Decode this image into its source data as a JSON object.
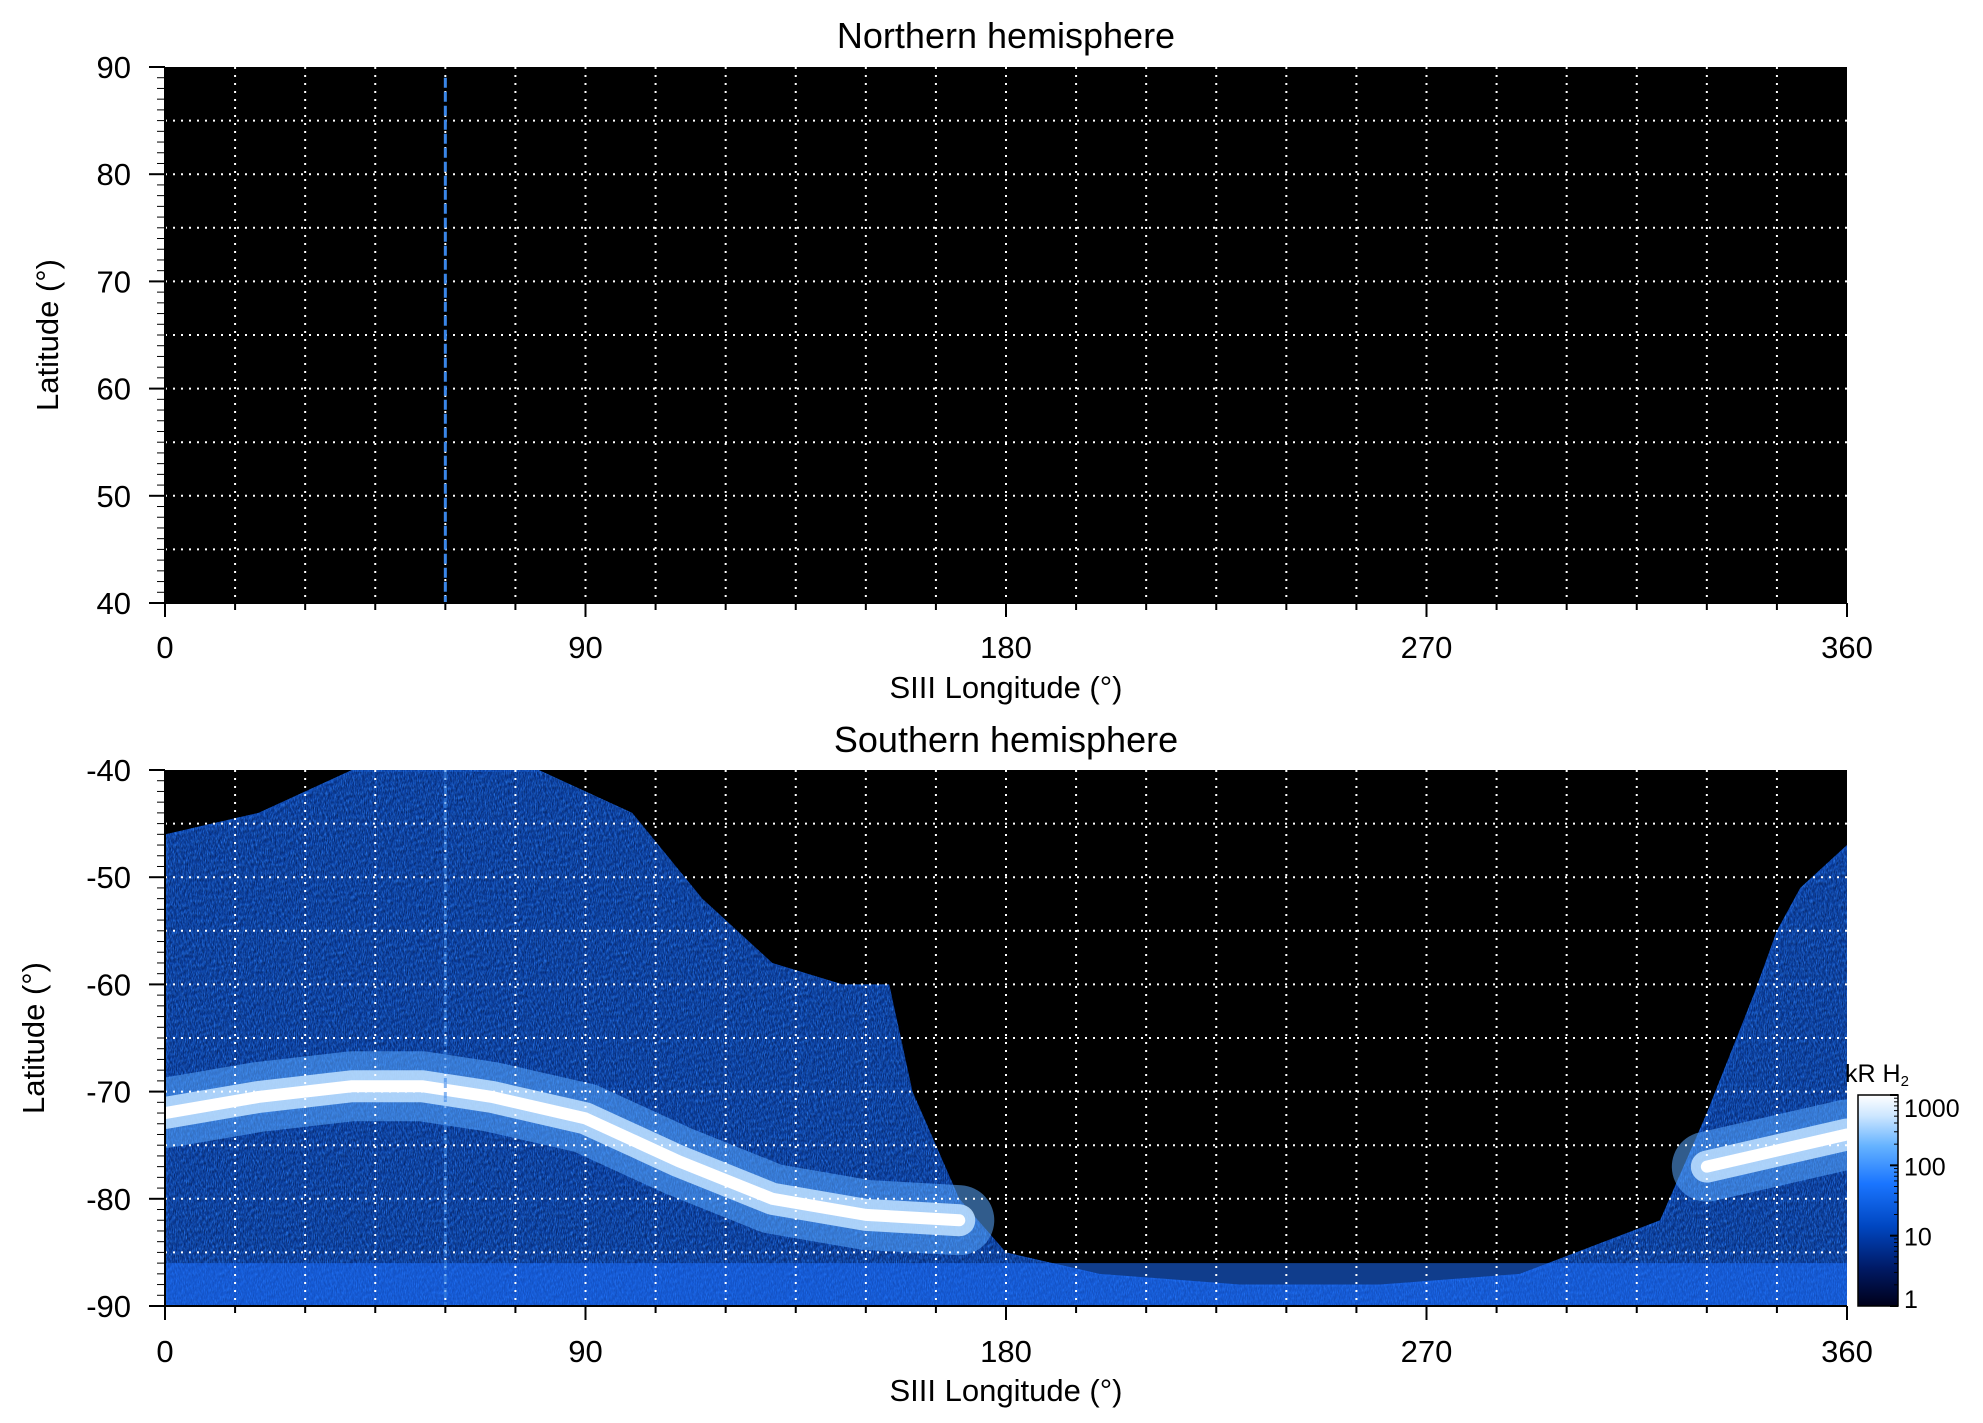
{
  "colors": {
    "background": "#000000",
    "grid": "#ffffff",
    "axis": "#000000",
    "meridian_line": "#3a86e8",
    "colormap": [
      "#00001a",
      "#001a66",
      "#0047c2",
      "#1a75ff",
      "#66b3ff",
      "#cce6ff",
      "#ffffff"
    ]
  },
  "chart_data": [
    {
      "type": "heatmap",
      "title": "Northern hemisphere",
      "xlabel": "SIII Longitude (°)",
      "ylabel": "Latitude (°)",
      "xlim": [
        0,
        360
      ],
      "ylim": [
        40,
        90
      ],
      "x_ticks": [
        0,
        90,
        180,
        270,
        360
      ],
      "y_ticks": [
        40,
        50,
        60,
        70,
        80,
        90
      ],
      "grid": true,
      "grid_x_step": 15,
      "grid_y_step": 5,
      "emission": "none",
      "meridian_marker_longitude": 60
    },
    {
      "type": "heatmap",
      "title": "Southern hemisphere",
      "xlabel": "SIII Longitude (°)",
      "ylabel": "Latitude (°)",
      "xlim": [
        0,
        360
      ],
      "ylim": [
        -90,
        -40
      ],
      "x_ticks": [
        0,
        90,
        180,
        270,
        360
      ],
      "y_ticks": [
        -40,
        -50,
        -60,
        -70,
        -80,
        -90
      ],
      "grid": true,
      "grid_x_step": 15,
      "grid_y_step": 5,
      "meridian_marker_longitude": 60,
      "auroral_oval": {
        "description": "bright main oval latitude vs longitude",
        "longitude": [
          0,
          20,
          40,
          55,
          70,
          90,
          110,
          130,
          150,
          170,
          330,
          345,
          360
        ],
        "latitude": [
          -72,
          -70.5,
          -69.5,
          -69.5,
          -70.5,
          -72.5,
          -76.5,
          -80,
          -81.5,
          -82,
          -77,
          -75.5,
          -74
        ]
      },
      "emission_boundary": {
        "description": "equatorward edge of observed emission (latitude vs longitude)",
        "longitude": [
          0,
          20,
          40,
          60,
          80,
          100,
          115,
          130,
          145,
          150,
          155,
          160,
          170,
          180,
          200,
          230,
          260,
          290,
          320,
          330,
          340,
          345,
          350,
          360
        ],
        "latitude": [
          -46,
          -44,
          -40,
          -40,
          -40,
          -44,
          -52,
          -58,
          -60,
          -60,
          -60,
          -70,
          -80,
          -85,
          -87,
          -88,
          -88,
          -87,
          -82,
          -72,
          -61,
          -55,
          -51,
          -47
        ]
      }
    }
  ],
  "colorbar": {
    "label_text": "kR H",
    "label_subscript": "2",
    "scale": "log",
    "range": [
      1,
      1000
    ],
    "ticks": [
      "1000",
      "100",
      "10",
      "1"
    ],
    "tick_values": [
      1000,
      100,
      10,
      1
    ]
  }
}
